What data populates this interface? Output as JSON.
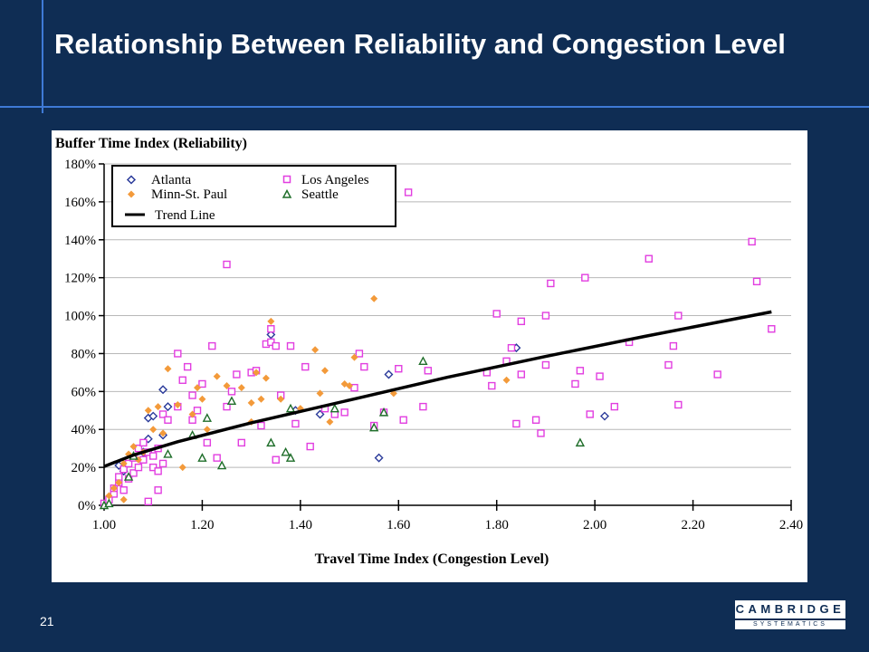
{
  "slide": {
    "title": "Relationship Between Reliability and Congestion Level",
    "page_number": "21"
  },
  "logo": {
    "top_text": "CAMBRIDGE",
    "bottom_text": "SYSTEMATICS"
  },
  "colors": {
    "background": "#0f2d54",
    "rule": "#3f7ad6",
    "atlanta": "#2a3a9a",
    "los_angeles": "#e23ee0",
    "minn_st_paul": "#f39a3a",
    "seattle": "#1f6e2a",
    "trend": "#000000"
  },
  "chart_data": {
    "type": "scatter",
    "ylabel": "Buffer Time Index (Reliability)",
    "xlabel": "Travel Time Index (Congestion Level)",
    "xlim": [
      1.0,
      2.4
    ],
    "ylim": [
      0,
      180
    ],
    "x_ticks": [
      1.0,
      1.2,
      1.4,
      1.6,
      1.8,
      2.0,
      2.2,
      2.4
    ],
    "x_tick_labels": [
      "1.00",
      "1.20",
      "1.40",
      "1.60",
      "1.80",
      "2.00",
      "2.20",
      "2.40"
    ],
    "y_ticks": [
      0,
      20,
      40,
      60,
      80,
      100,
      120,
      140,
      160,
      180
    ],
    "y_tick_labels": [
      "0%",
      "20%",
      "40%",
      "60%",
      "80%",
      "100%",
      "120%",
      "140%",
      "160%",
      "180%"
    ],
    "grid": "horizontal",
    "legend_position": "top-left",
    "legend": {
      "atlanta": "Atlanta",
      "los_angeles": "Los Angeles",
      "minn_st_paul": "Minn-St. Paul",
      "seattle": "Seattle",
      "trend": "Trend Line"
    },
    "series": [
      {
        "name": "Atlanta",
        "marker": "diamond-open",
        "color": "#2a3a9a",
        "points": [
          [
            1.03,
            21
          ],
          [
            1.04,
            18
          ],
          [
            1.08,
            28
          ],
          [
            1.09,
            46
          ],
          [
            1.1,
            47
          ],
          [
            1.12,
            61
          ],
          [
            1.13,
            52
          ],
          [
            1.12,
            37
          ],
          [
            1.09,
            35
          ],
          [
            1.34,
            90
          ],
          [
            1.39,
            50
          ],
          [
            1.44,
            48
          ],
          [
            1.58,
            69
          ],
          [
            1.56,
            25
          ],
          [
            1.84,
            83
          ],
          [
            2.02,
            47
          ]
        ]
      },
      {
        "name": "Los Angeles",
        "marker": "square-open",
        "color": "#e23ee0",
        "points": [
          [
            1.0,
            1
          ],
          [
            1.01,
            3
          ],
          [
            1.02,
            6
          ],
          [
            1.02,
            9
          ],
          [
            1.03,
            12
          ],
          [
            1.03,
            15
          ],
          [
            1.04,
            8
          ],
          [
            1.04,
            19
          ],
          [
            1.05,
            14
          ],
          [
            1.05,
            22
          ],
          [
            1.06,
            17
          ],
          [
            1.06,
            25
          ],
          [
            1.07,
            20
          ],
          [
            1.07,
            30
          ],
          [
            1.08,
            24
          ],
          [
            1.08,
            33
          ],
          [
            1.09,
            2
          ],
          [
            1.09,
            28
          ],
          [
            1.1,
            20
          ],
          [
            1.1,
            26
          ],
          [
            1.11,
            8
          ],
          [
            1.11,
            18
          ],
          [
            1.11,
            30
          ],
          [
            1.12,
            22
          ],
          [
            1.12,
            48
          ],
          [
            1.13,
            45
          ],
          [
            1.15,
            52
          ],
          [
            1.15,
            80
          ],
          [
            1.16,
            66
          ],
          [
            1.17,
            73
          ],
          [
            1.18,
            45
          ],
          [
            1.18,
            58
          ],
          [
            1.19,
            50
          ],
          [
            1.2,
            64
          ],
          [
            1.21,
            33
          ],
          [
            1.22,
            84
          ],
          [
            1.23,
            25
          ],
          [
            1.25,
            127
          ],
          [
            1.25,
            52
          ],
          [
            1.26,
            60
          ],
          [
            1.27,
            69
          ],
          [
            1.28,
            33
          ],
          [
            1.3,
            70
          ],
          [
            1.31,
            71
          ],
          [
            1.32,
            42
          ],
          [
            1.33,
            85
          ],
          [
            1.34,
            93
          ],
          [
            1.34,
            86
          ],
          [
            1.35,
            84
          ],
          [
            1.35,
            24
          ],
          [
            1.36,
            58
          ],
          [
            1.38,
            84
          ],
          [
            1.39,
            43
          ],
          [
            1.41,
            73
          ],
          [
            1.42,
            31
          ],
          [
            1.45,
            51
          ],
          [
            1.47,
            48
          ],
          [
            1.49,
            49
          ],
          [
            1.51,
            62
          ],
          [
            1.52,
            80
          ],
          [
            1.53,
            73
          ],
          [
            1.55,
            42
          ],
          [
            1.57,
            49
          ],
          [
            1.6,
            72
          ],
          [
            1.61,
            45
          ],
          [
            1.62,
            165
          ],
          [
            1.65,
            52
          ],
          [
            1.66,
            71
          ],
          [
            1.78,
            70
          ],
          [
            1.79,
            63
          ],
          [
            1.8,
            101
          ],
          [
            1.82,
            76
          ],
          [
            1.83,
            83
          ],
          [
            1.84,
            43
          ],
          [
            1.85,
            69
          ],
          [
            1.85,
            97
          ],
          [
            1.88,
            45
          ],
          [
            1.89,
            38
          ],
          [
            1.9,
            74
          ],
          [
            1.9,
            100
          ],
          [
            1.91,
            117
          ],
          [
            1.96,
            64
          ],
          [
            1.97,
            71
          ],
          [
            1.98,
            120
          ],
          [
            1.99,
            48
          ],
          [
            2.01,
            68
          ],
          [
            2.04,
            52
          ],
          [
            2.07,
            86
          ],
          [
            2.11,
            130
          ],
          [
            2.15,
            74
          ],
          [
            2.16,
            84
          ],
          [
            2.17,
            53
          ],
          [
            2.17,
            100
          ],
          [
            2.25,
            69
          ],
          [
            2.32,
            139
          ],
          [
            2.33,
            118
          ],
          [
            2.36,
            93
          ]
        ]
      },
      {
        "name": "Minn-St. Paul",
        "marker": "diamond-filled",
        "color": "#f39a3a",
        "points": [
          [
            1.01,
            5
          ],
          [
            1.02,
            9
          ],
          [
            1.03,
            12
          ],
          [
            1.04,
            3
          ],
          [
            1.04,
            22
          ],
          [
            1.05,
            27
          ],
          [
            1.06,
            31
          ],
          [
            1.07,
            24
          ],
          [
            1.08,
            28
          ],
          [
            1.09,
            50
          ],
          [
            1.1,
            40
          ],
          [
            1.11,
            52
          ],
          [
            1.12,
            38
          ],
          [
            1.13,
            72
          ],
          [
            1.15,
            53
          ],
          [
            1.16,
            20
          ],
          [
            1.18,
            48
          ],
          [
            1.19,
            62
          ],
          [
            1.2,
            56
          ],
          [
            1.21,
            40
          ],
          [
            1.23,
            68
          ],
          [
            1.25,
            63
          ],
          [
            1.28,
            62
          ],
          [
            1.3,
            44
          ],
          [
            1.3,
            54
          ],
          [
            1.31,
            70
          ],
          [
            1.32,
            56
          ],
          [
            1.33,
            67
          ],
          [
            1.34,
            97
          ],
          [
            1.36,
            56
          ],
          [
            1.4,
            51
          ],
          [
            1.43,
            82
          ],
          [
            1.44,
            59
          ],
          [
            1.45,
            71
          ],
          [
            1.46,
            44
          ],
          [
            1.49,
            64
          ],
          [
            1.5,
            63
          ],
          [
            1.51,
            78
          ],
          [
            1.55,
            109
          ],
          [
            1.59,
            59
          ],
          [
            1.82,
            66
          ]
        ]
      },
      {
        "name": "Seattle",
        "marker": "triangle-open",
        "color": "#1f6e2a",
        "points": [
          [
            1.0,
            0
          ],
          [
            1.01,
            1
          ],
          [
            1.05,
            15
          ],
          [
            1.06,
            26
          ],
          [
            1.13,
            27
          ],
          [
            1.18,
            37
          ],
          [
            1.2,
            25
          ],
          [
            1.21,
            46
          ],
          [
            1.24,
            21
          ],
          [
            1.26,
            55
          ],
          [
            1.34,
            33
          ],
          [
            1.37,
            28
          ],
          [
            1.38,
            25
          ],
          [
            1.38,
            51
          ],
          [
            1.47,
            51
          ],
          [
            1.55,
            41
          ],
          [
            1.57,
            49
          ],
          [
            1.65,
            76
          ],
          [
            1.97,
            33
          ]
        ]
      },
      {
        "name": "Trend Line",
        "type": "line",
        "color": "#000000",
        "points": [
          [
            1.0,
            20.5
          ],
          [
            1.06,
            26.5
          ],
          [
            1.15,
            33.5
          ],
          [
            1.3,
            43.5
          ],
          [
            1.5,
            55.5
          ],
          [
            1.7,
            67.5
          ],
          [
            1.9,
            78.5
          ],
          [
            2.1,
            89
          ],
          [
            2.36,
            102
          ]
        ]
      }
    ]
  }
}
